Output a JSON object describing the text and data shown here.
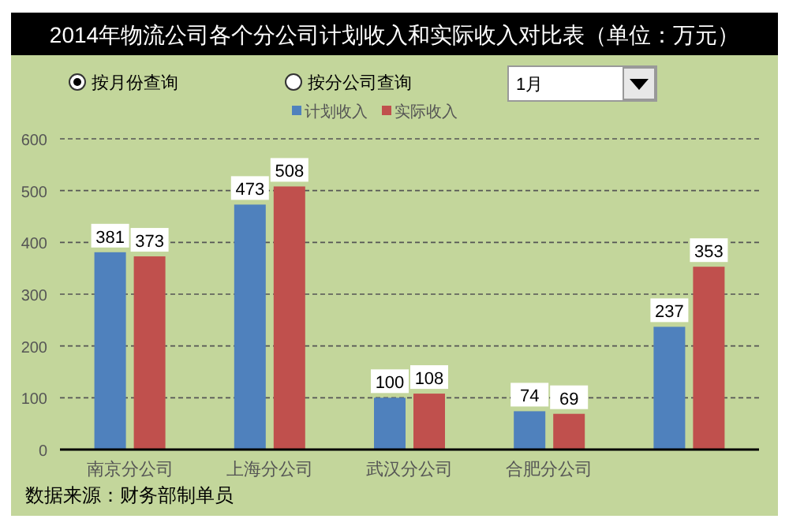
{
  "chart_data": {
    "type": "bar",
    "title": "2014年物流公司各个分公司计划收入和实际收入对比表（单位：万元）",
    "categories": [
      "南京分公司",
      "上海分公司",
      "武汉分公司",
      "合肥分公司",
      null
    ],
    "series": [
      {
        "name": "计划收入",
        "color": "#4f81bd",
        "values": [
          381,
          473,
          100,
          74,
          237
        ]
      },
      {
        "name": "实际收入",
        "color": "#c0504d",
        "values": [
          373,
          508,
          108,
          69,
          353
        ]
      }
    ],
    "ylim": [
      0,
      600
    ],
    "yticks": [
      0,
      100,
      200,
      300,
      400,
      500,
      600
    ],
    "grid": "y",
    "legend": "top",
    "data_labels": true,
    "annotations": [
      "按月份查询",
      "按分公司查询",
      "1月",
      "数据来源：财务部制单员"
    ]
  }
}
